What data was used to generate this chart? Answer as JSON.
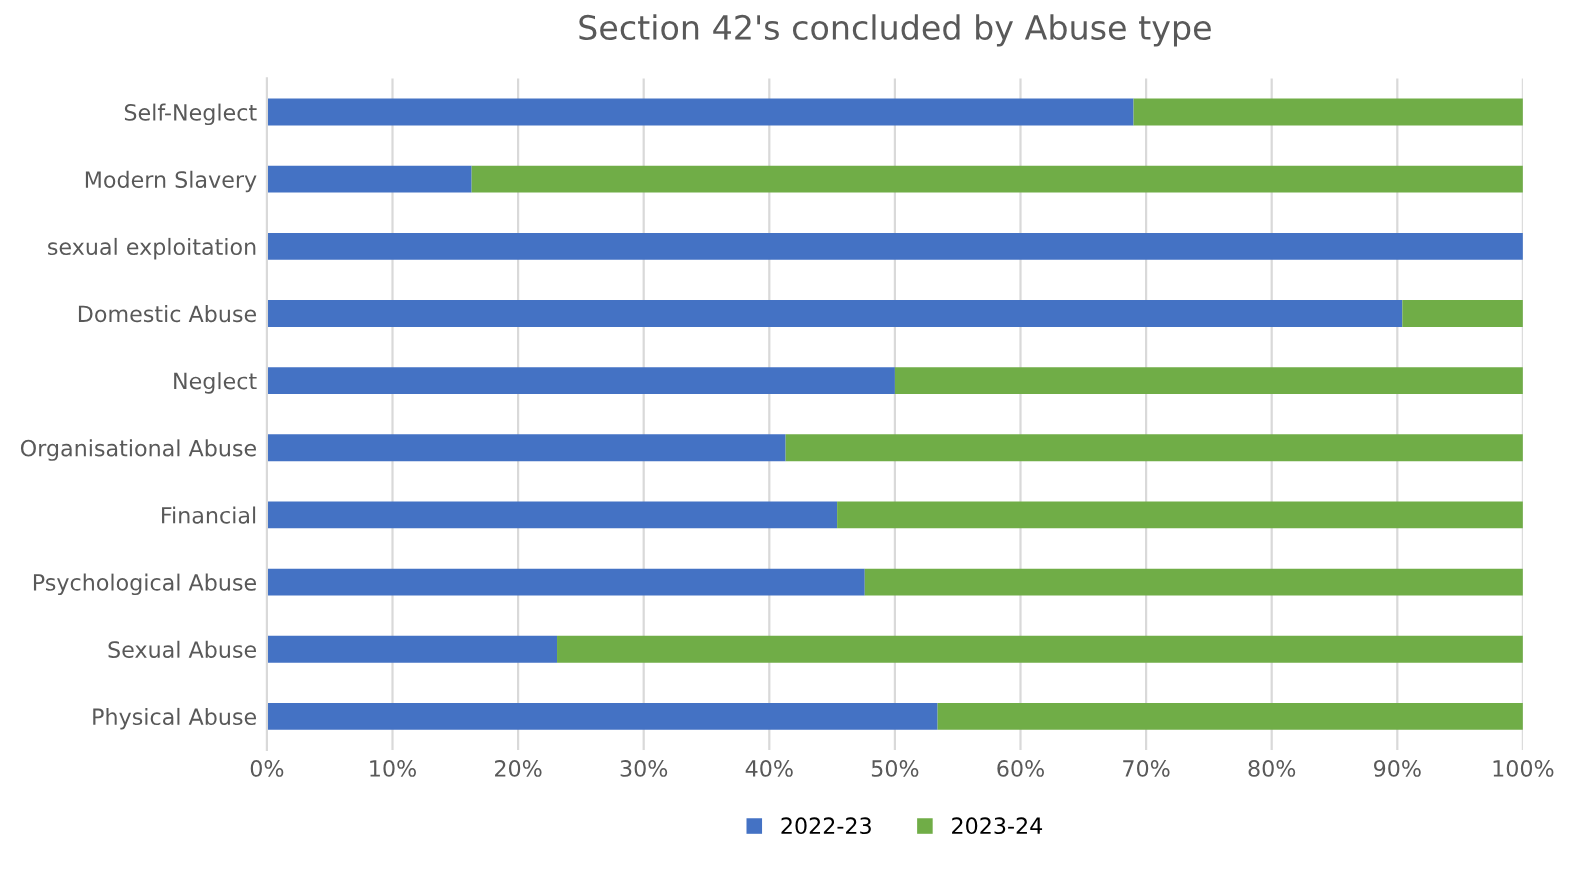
{
  "chart_data": {
    "type": "bar",
    "title": "Section 42's concluded by Abuse type",
    "orientation": "horizontal",
    "stacked": true,
    "categories": [
      "Self-Neglect",
      "Modern Slavery",
      "sexual exploitation",
      "Domestic Abuse",
      "Neglect",
      "Organisational Abuse",
      "Financial",
      "Psychological Abuse",
      "Sexual Abuse",
      "Physical Abuse"
    ],
    "series": [
      {
        "name": "2022-23",
        "color": "#4472c4",
        "values": [
          69.0,
          16.3,
          100,
          90.4,
          50.0,
          41.3,
          45.4,
          47.6,
          23.1,
          53.4
        ]
      },
      {
        "name": "2023-24",
        "color": "#70ad47",
        "values": [
          31.0,
          83.7,
          0,
          9.6,
          50.0,
          58.7,
          54.6,
          52.4,
          76.9,
          46.6
        ]
      }
    ],
    "xlim": [
      0,
      100
    ],
    "xticks": [
      {
        "value": 0,
        "label": "0%"
      },
      {
        "value": 10,
        "label": "10%"
      },
      {
        "value": 20,
        "label": "20%"
      },
      {
        "value": 30,
        "label": "30%"
      },
      {
        "value": 40,
        "label": "40%"
      },
      {
        "value": 50,
        "label": "50%"
      },
      {
        "value": 60,
        "label": "60%"
      },
      {
        "value": 70,
        "label": "70%"
      },
      {
        "value": 80,
        "label": "80%"
      },
      {
        "value": 90,
        "label": "90%"
      },
      {
        "value": 100,
        "label": "100%"
      }
    ],
    "grid": "x",
    "legend": "bottom"
  }
}
